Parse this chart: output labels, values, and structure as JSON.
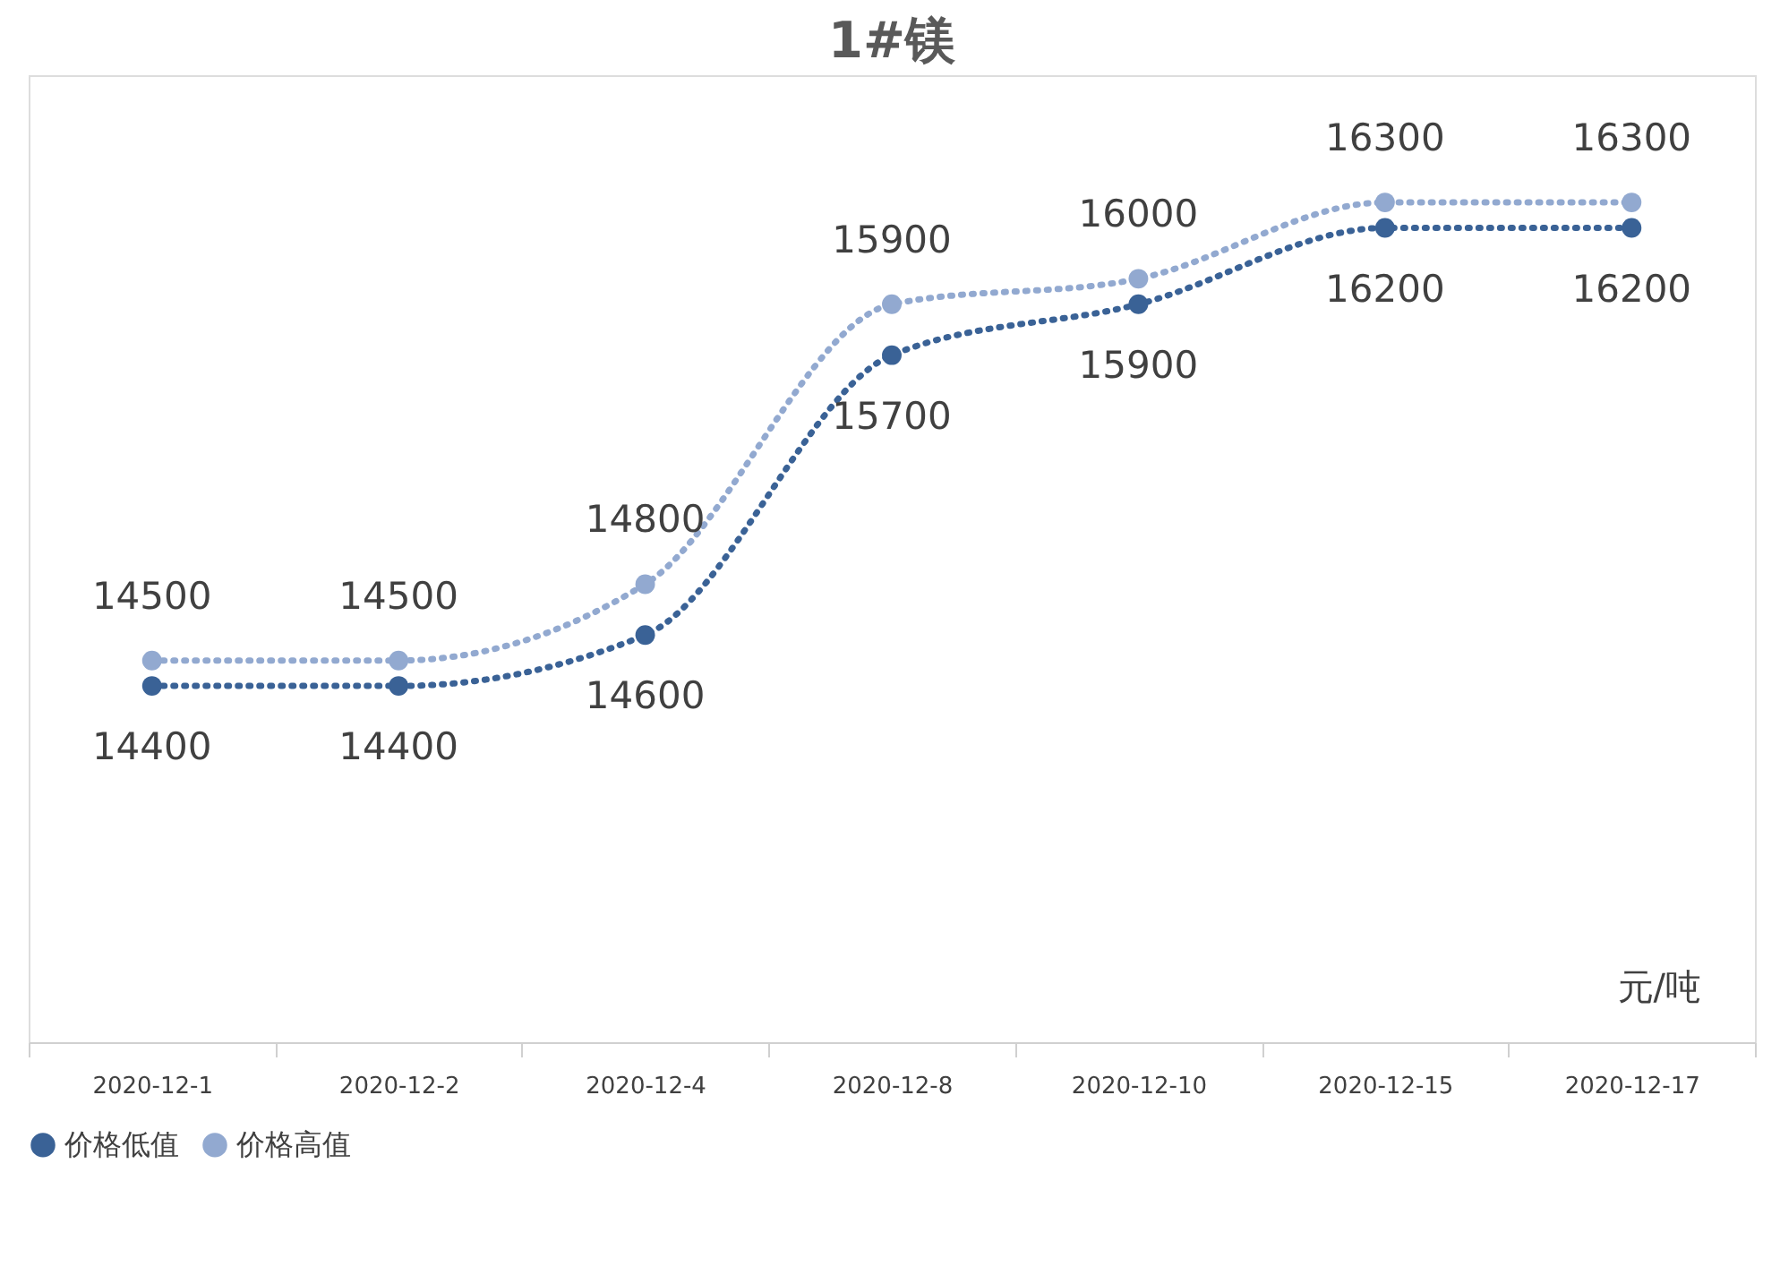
{
  "chart_data": {
    "type": "line",
    "title": "1#镁",
    "categories": [
      "2020-12-1",
      "2020-12-2",
      "2020-12-4",
      "2020-12-8",
      "2020-12-10",
      "2020-12-15",
      "2020-12-17"
    ],
    "series": [
      {
        "name": "价格低值",
        "color": "#3a6296",
        "values": [
          14400,
          14400,
          14600,
          15700,
          15900,
          16200,
          16200
        ]
      },
      {
        "name": "价格高值",
        "color": "#92a9d0",
        "values": [
          14500,
          14500,
          14800,
          15900,
          16000,
          16300,
          16300
        ]
      }
    ],
    "ylim": [
      13000,
      16800
    ],
    "data_labels": true,
    "legend": "bottom",
    "marker": "circle",
    "line_style": "dotted",
    "grid": false,
    "tick_labels": "x",
    "annotations": [
      "元/吨"
    ]
  }
}
